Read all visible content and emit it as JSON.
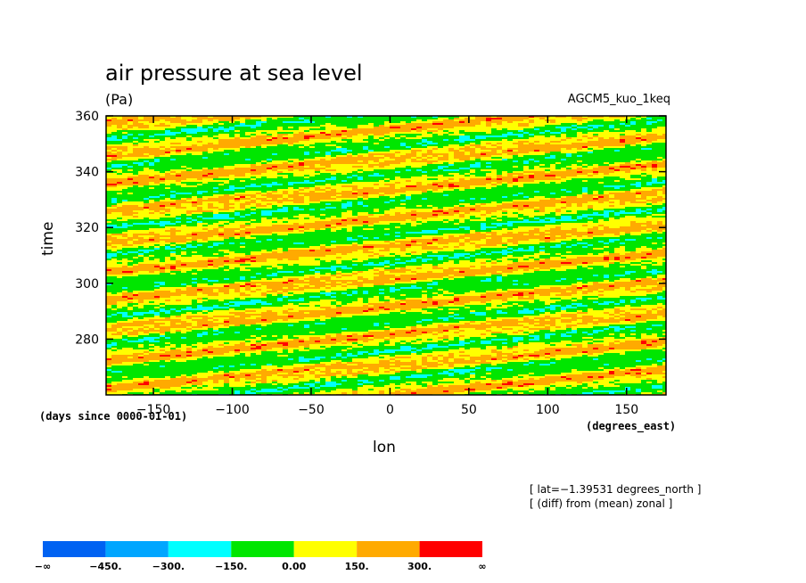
{
  "chart_data": {
    "type": "heatmap",
    "title": "air pressure at sea level",
    "units": "(Pa)",
    "model": "AGCM5_kuo_1keq",
    "xlabel": "lon",
    "x_units": "(degrees_east)",
    "ylabel": "time",
    "y_units": "(days since 0000-01-01)",
    "xlim": [
      -180,
      175
    ],
    "ylim": [
      260,
      360
    ],
    "x_ticks": [
      -150,
      -100,
      -50,
      0,
      50,
      100,
      150
    ],
    "x_tick_labels": [
      "−150",
      "−100",
      "−50",
      "0",
      "50",
      "100",
      "150"
    ],
    "y_ticks": [
      280,
      300,
      320,
      340,
      360
    ],
    "y_tick_labels": [
      "280",
      "300",
      "320",
      "340",
      "360"
    ],
    "annotations": [
      "[ lat=−1.39531 degrees_north ]",
      "[ (diff) from (mean) zonal ]"
    ],
    "colorbar": {
      "levels": [
        "−∞",
        "−450.",
        "−300.",
        "−150.",
        "0.00",
        "150.",
        "300.",
        "∞"
      ],
      "colors": [
        "#0062f2",
        "#00a6ff",
        "#00ffff",
        "#00e600",
        "#ffff00",
        "#ffaa00",
        "#ff0000"
      ]
    },
    "pattern": "eastward-propagating diagonal bands of positive and negative anomalies, mostly within -150 to 300 Pa, with scattered red (>300) streaks and cyan (<-150) patches"
  }
}
